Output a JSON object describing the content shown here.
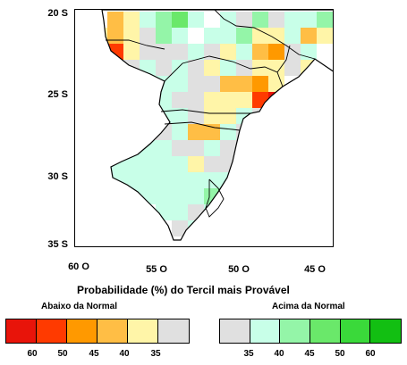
{
  "y_ticks": [
    "20 S",
    "25 S",
    "30 S",
    "35 S"
  ],
  "x_ticks": [
    "60 O",
    "55 O",
    "50 O",
    "45 O"
  ],
  "legend": {
    "title": "Probabilidade  (%) do Tercil mais Provável",
    "below_title": "Abaixo da Normal",
    "above_title": "Acima da Normal",
    "below_colors": [
      "#e8140a",
      "#ff3a00",
      "#ff9900",
      "#ffbe45",
      "#fff5a8",
      "#e0e0e0"
    ],
    "above_colors": [
      "#e0e0e0",
      "#c8ffe8",
      "#94f5a8",
      "#6ae86a",
      "#3ad93a",
      "#12bf12"
    ],
    "below_labels": [
      "60",
      "50",
      "45",
      "40",
      "35"
    ],
    "above_labels": [
      "35",
      "40",
      "45",
      "50",
      "60"
    ]
  },
  "map": {
    "colors": {
      "gray": "#e0e0e0",
      "white": "#ffffff",
      "light_yellow": "#fff5a8",
      "light_orange": "#ffbe45",
      "orange": "#ff9900",
      "red": "#ff3a00",
      "dark_red": "#e8140a",
      "mint": "#c8ffe8",
      "light_green": "#94f5a8",
      "green": "#6ae86a",
      "dark_green": "#3ad93a"
    },
    "border_color": "#000000",
    "land_color": "#ffffff"
  }
}
